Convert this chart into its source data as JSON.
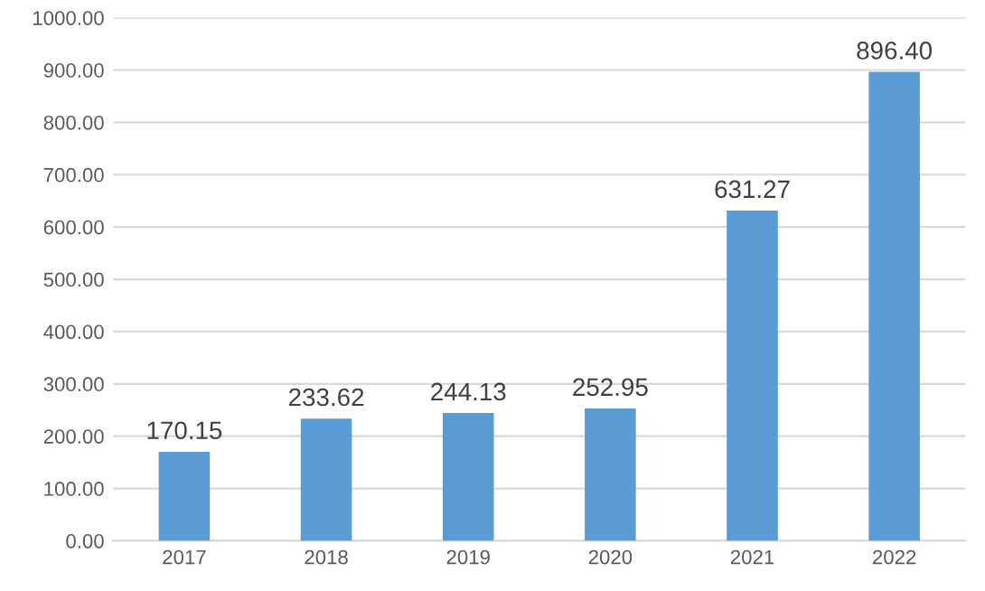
{
  "chart_data": {
    "type": "bar",
    "categories": [
      "2017",
      "2018",
      "2019",
      "2020",
      "2021",
      "2022"
    ],
    "values": [
      170.15,
      233.62,
      244.13,
      252.95,
      631.27,
      896.4
    ],
    "value_labels": [
      "170.15",
      "233.62",
      "244.13",
      "252.95",
      "631.27",
      "896.40"
    ],
    "color": "#5b9bd5",
    "ylim": [
      0,
      1000
    ],
    "yticks": [
      {
        "value": 0,
        "label": "0.00"
      },
      {
        "value": 100,
        "label": "100.00"
      },
      {
        "value": 200,
        "label": "200.00"
      },
      {
        "value": 300,
        "label": "300.00"
      },
      {
        "value": 400,
        "label": "400.00"
      },
      {
        "value": 500,
        "label": "500.00"
      },
      {
        "value": 600,
        "label": "600.00"
      },
      {
        "value": 700,
        "label": "700.00"
      },
      {
        "value": 800,
        "label": "800.00"
      },
      {
        "value": 900,
        "label": "900.00"
      },
      {
        "value": 1000,
        "label": "1000.00"
      }
    ],
    "grid": "y"
  }
}
